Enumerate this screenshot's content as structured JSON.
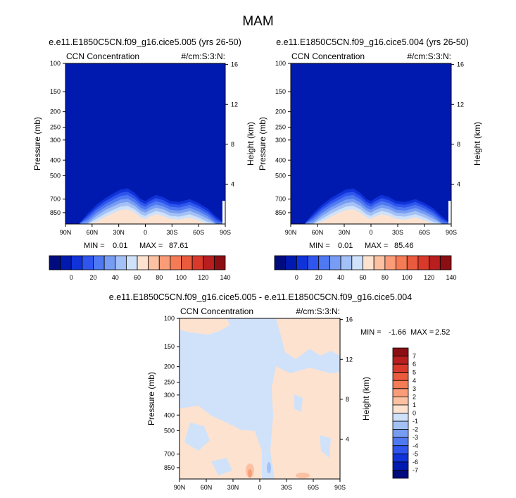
{
  "page_title": "MAM",
  "colors": {
    "background": "#ffffff",
    "frame": "#000000",
    "palette_abs": [
      "#000c7d",
      "#001ab0",
      "#0f33d8",
      "#2f55ee",
      "#4e79f2",
      "#779cf4",
      "#a3c1f6",
      "#d0e2fa",
      "#fde2d0",
      "#fcc1a2",
      "#fa9c77",
      "#f57b56",
      "#ea5a3c",
      "#d9392a",
      "#b91e1f",
      "#8b0f12"
    ],
    "palette_diff": [
      "#000c7d",
      "#001ab0",
      "#0f33d8",
      "#2f55ee",
      "#4e79f2",
      "#779cf4",
      "#a3c1f6",
      "#d0e2fa",
      "#fde2d0",
      "#fcc1a2",
      "#fa9c77",
      "#f57b56",
      "#ea5a3c",
      "#d9392a",
      "#b91e1f",
      "#8b0f12"
    ]
  },
  "chart_data": [
    {
      "type": "heatmap",
      "title": "e.e11.E1850C5CN.f09_g16.cice5.005 (yrs 26-50)",
      "left_label": "CCN Concentration",
      "right_label": "#/cm:S:3:N:",
      "ylabel": "Pressure (mb)",
      "ylabel_right": "Height (km)",
      "x_ticks": [
        "90N",
        "60N",
        "30N",
        "0",
        "30S",
        "60S",
        "90S"
      ],
      "y_ticks": [
        "100",
        "150",
        "200",
        "250",
        "300",
        "400",
        "500",
        "700",
        "850"
      ],
      "y_ticks_right": [
        "16",
        "12",
        "8",
        "4"
      ],
      "stats": {
        "min_label": "MIN =",
        "min": "0.01",
        "max_label": "MAX =",
        "max": "87.61"
      },
      "levels": [
        "0",
        "20",
        "40",
        "60",
        "80",
        "100",
        "120",
        "140"
      ],
      "lat_profile": {
        "lat": [
          90,
          75,
          65,
          55,
          45,
          35,
          28,
          20,
          12,
          5,
          0,
          -5,
          -12,
          -20,
          -28,
          -38,
          -50,
          -60,
          -70,
          -80,
          -90
        ],
        "top_pressure": [
          1000,
          1000,
          860,
          760,
          690,
          640,
          610,
          600,
          640,
          700,
          720,
          690,
          660,
          680,
          720,
          730,
          700,
          740,
          800,
          900,
          1000
        ]
      }
    },
    {
      "type": "heatmap",
      "title": "e.e11.E1850C5CN.f09_g16.cice5.004 (yrs 26-50)",
      "left_label": "CCN Concentration",
      "right_label": "#/cm:S:3:N:",
      "ylabel": "Pressure (mb)",
      "ylabel_right": "Height (km)",
      "x_ticks": [
        "90N",
        "60N",
        "30N",
        "0",
        "30S",
        "60S",
        "90S"
      ],
      "y_ticks": [
        "100",
        "150",
        "200",
        "250",
        "300",
        "400",
        "500",
        "700",
        "850"
      ],
      "y_ticks_right": [
        "16",
        "12",
        "8",
        "4"
      ],
      "stats": {
        "min_label": "MIN =",
        "min": "0.01",
        "max_label": "MAX =",
        "max": "85.46"
      },
      "levels": [
        "0",
        "20",
        "40",
        "60",
        "80",
        "100",
        "120",
        "140"
      ],
      "lat_profile": {
        "lat": [
          90,
          75,
          65,
          55,
          45,
          35,
          28,
          20,
          12,
          5,
          0,
          -5,
          -12,
          -20,
          -28,
          -38,
          -50,
          -60,
          -70,
          -80,
          -90
        ],
        "top_pressure": [
          1000,
          1000,
          860,
          760,
          690,
          640,
          610,
          600,
          640,
          700,
          720,
          690,
          660,
          680,
          720,
          730,
          700,
          740,
          800,
          900,
          1000
        ]
      }
    },
    {
      "type": "heatmap",
      "title": "e.e11.E1850C5CN.f09_g16.cice5.005 - e.e11.E1850C5CN.f09_g16.cice5.004",
      "left_label": "CCN Concentration",
      "right_label": "#/cm:S:3:N:",
      "ylabel": "Pressure (mb)",
      "ylabel_right": "Height (km)",
      "x_ticks": [
        "90N",
        "60N",
        "30N",
        "0",
        "30S",
        "60S",
        "90S"
      ],
      "y_ticks": [
        "100",
        "150",
        "200",
        "250",
        "300",
        "400",
        "500",
        "700",
        "850"
      ],
      "y_ticks_right": [
        "16",
        "12",
        "8",
        "4"
      ],
      "stats": {
        "min_label": "MIN =",
        "min": "-1.66",
        "max_label": "MAX =",
        "max": "2.52"
      },
      "levels": [
        "7",
        "6",
        "5",
        "4",
        "3",
        "2",
        "1",
        "0",
        "-1",
        "-2",
        "-3",
        "-4",
        "-5",
        "-6",
        "-7"
      ]
    }
  ]
}
